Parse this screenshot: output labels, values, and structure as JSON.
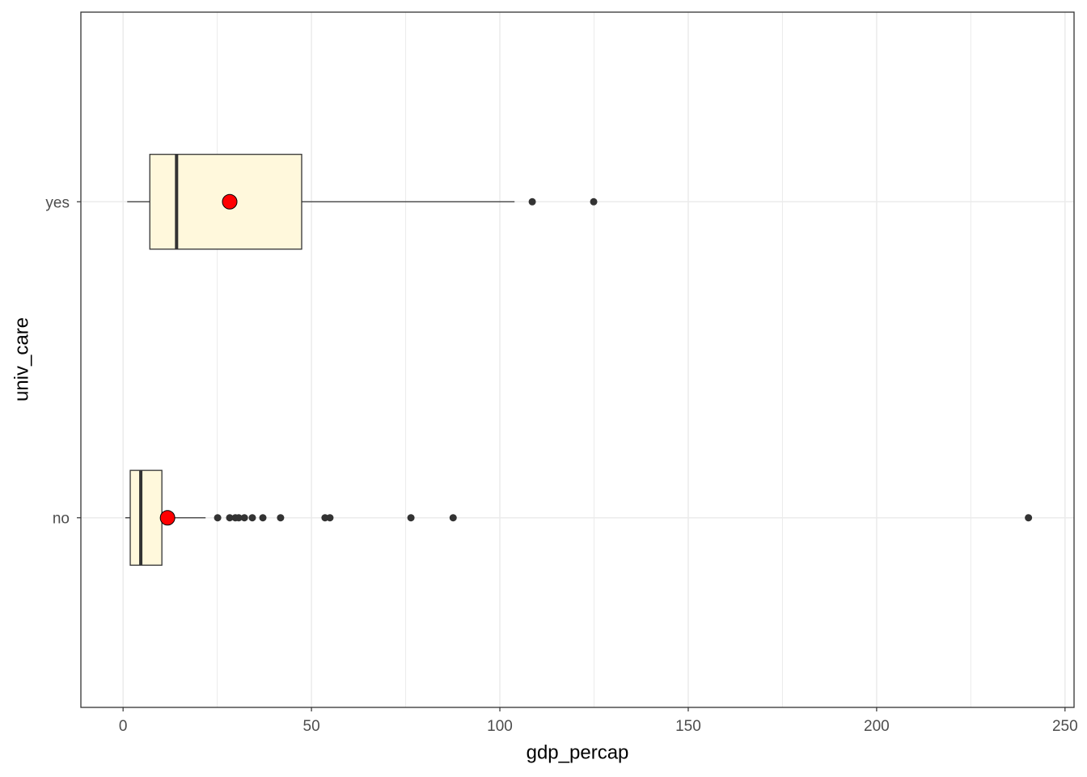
{
  "chart_data": {
    "type": "boxplot",
    "x_label": "gdp_percap",
    "y_label": "univ_care",
    "categories": [
      "no",
      "yes"
    ],
    "boxes": [
      {
        "min": 0.6,
        "q1": 1.9,
        "median": 4.7,
        "q3": 10.3,
        "max": 21.9,
        "mean": 11.8,
        "outliers": [
          25.1,
          28.3,
          29.8,
          30.7,
          32.2,
          34.3,
          37.1,
          41.8,
          53.6,
          54.9,
          76.4,
          87.6,
          240.3
        ]
      },
      {
        "min": 1.1,
        "q1": 7.1,
        "median": 14.2,
        "q3": 47.4,
        "max": 103.9,
        "mean": 28.3,
        "outliers": [
          108.6,
          124.9
        ]
      }
    ],
    "box_color": "#fff8dc",
    "mean_color": "#ff0000",
    "outlier_color": "#333333",
    "xlim": [
      -11.2,
      252.4
    ],
    "xticks": [
      0,
      50,
      100,
      150,
      200,
      250
    ],
    "x_minor_ticks": [
      25,
      75,
      125,
      175,
      225
    ],
    "grid": true
  }
}
